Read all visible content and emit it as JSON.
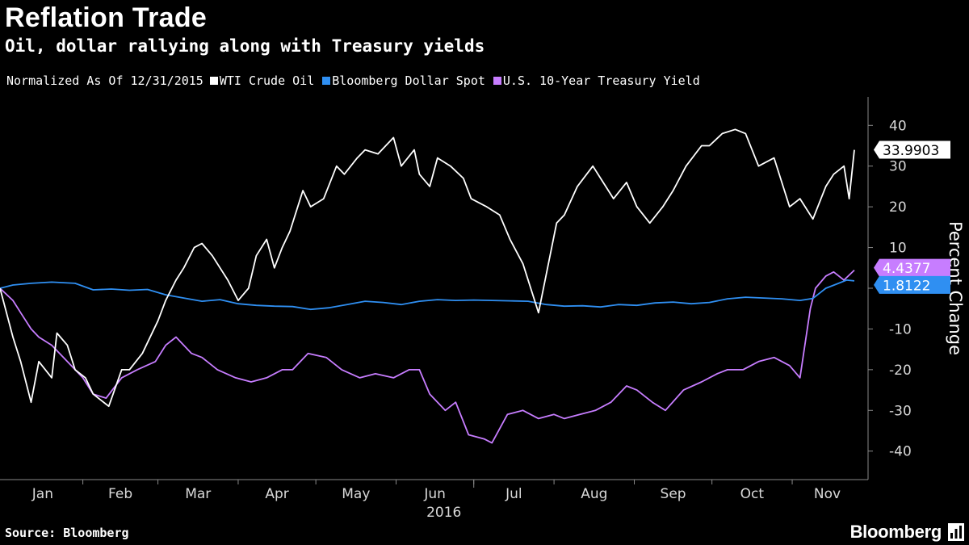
{
  "header": {
    "title": "Reflation Trade",
    "subtitle": "Oil, dollar rallying along with Treasury yields"
  },
  "legend": {
    "note": "Normalized As Of 12/31/2015",
    "items": [
      {
        "label": "WTI Crude Oil",
        "color": "#ffffff"
      },
      {
        "label": "Bloomberg Dollar Spot",
        "color": "#2f8ff2"
      },
      {
        "label": "U.S. 10-Year Treasury Yield",
        "color": "#c77dff"
      }
    ]
  },
  "footer": {
    "source": "Source: Bloomberg",
    "brand": "Bloomberg",
    "brand_icon": "bloomberg-chart-icon"
  },
  "chart_data": {
    "type": "line",
    "ylabel": "Percent Change",
    "xlabel": "2016",
    "ylim": [
      -47,
      47
    ],
    "yticks": [
      40,
      30,
      20,
      10,
      0,
      -10,
      -20,
      -30,
      -40
    ],
    "ytick_labels": [
      "40",
      "30",
      "20",
      "10",
      "0",
      "-10",
      "-20",
      "-30",
      "-40"
    ],
    "xlim": [
      "2015-12-31",
      "2016-11-25"
    ],
    "xticks": [
      "Jan",
      "Feb",
      "Mar",
      "Apr",
      "May",
      "Jun",
      "Jul",
      "Aug",
      "Sep",
      "Oct",
      "Nov"
    ],
    "grid": false,
    "legend_position": "top-left",
    "series": [
      {
        "name": "WTI Crude Oil",
        "color": "#ffffff",
        "end_label": "33.9903",
        "dates": [
          "2015-12-31",
          "2016-01-05",
          "2016-01-08",
          "2016-01-12",
          "2016-01-15",
          "2016-01-20",
          "2016-01-22",
          "2016-01-26",
          "2016-01-29",
          "2016-02-02",
          "2016-02-05",
          "2016-02-11",
          "2016-02-16",
          "2016-02-19",
          "2016-02-24",
          "2016-03-01",
          "2016-03-04",
          "2016-03-08",
          "2016-03-11",
          "2016-03-15",
          "2016-03-18",
          "2016-03-22",
          "2016-03-28",
          "2016-04-01",
          "2016-04-05",
          "2016-04-08",
          "2016-04-12",
          "2016-04-15",
          "2016-04-18",
          "2016-04-21",
          "2016-04-26",
          "2016-04-29",
          "2016-05-04",
          "2016-05-09",
          "2016-05-12",
          "2016-05-17",
          "2016-05-20",
          "2016-05-25",
          "2016-05-31",
          "2016-06-03",
          "2016-06-08",
          "2016-06-10",
          "2016-06-14",
          "2016-06-17",
          "2016-06-22",
          "2016-06-27",
          "2016-06-30",
          "2016-07-06",
          "2016-07-11",
          "2016-07-15",
          "2016-07-20",
          "2016-07-26",
          "2016-08-02",
          "2016-08-05",
          "2016-08-10",
          "2016-08-16",
          "2016-08-19",
          "2016-08-24",
          "2016-08-29",
          "2016-09-02",
          "2016-09-07",
          "2016-09-12",
          "2016-09-16",
          "2016-09-21",
          "2016-09-27",
          "2016-09-30",
          "2016-10-05",
          "2016-10-10",
          "2016-10-14",
          "2016-10-19",
          "2016-10-25",
          "2016-10-31",
          "2016-11-04",
          "2016-11-09",
          "2016-11-14",
          "2016-11-17",
          "2016-11-21",
          "2016-11-23",
          "2016-11-25"
        ],
        "values": [
          0,
          -12,
          -18,
          -28,
          -18,
          -22,
          -11,
          -14,
          -20,
          -22,
          -26,
          -29,
          -20,
          -20,
          -16,
          -8,
          -3,
          2,
          5,
          10,
          11,
          8,
          2,
          -3,
          0,
          8,
          12,
          5,
          10,
          14,
          24,
          20,
          22,
          30,
          28,
          32,
          34,
          33,
          37,
          30,
          34,
          28,
          25,
          32,
          30,
          27,
          22,
          20,
          18,
          12,
          6,
          -6,
          16,
          18,
          25,
          30,
          27,
          22,
          26,
          20,
          16,
          20,
          24,
          30,
          35,
          35,
          38,
          39,
          38,
          30,
          32,
          20,
          22,
          17,
          25,
          28,
          30,
          22,
          34
        ]
      },
      {
        "name": "Bloomberg Dollar Spot",
        "color": "#2f8ff2",
        "end_label": "1.8122",
        "dates": [
          "2015-12-31",
          "2016-01-05",
          "2016-01-12",
          "2016-01-20",
          "2016-01-29",
          "2016-02-05",
          "2016-02-12",
          "2016-02-19",
          "2016-02-26",
          "2016-03-04",
          "2016-03-11",
          "2016-03-18",
          "2016-03-25",
          "2016-04-01",
          "2016-04-08",
          "2016-04-15",
          "2016-04-22",
          "2016-04-29",
          "2016-05-06",
          "2016-05-13",
          "2016-05-20",
          "2016-05-27",
          "2016-06-03",
          "2016-06-10",
          "2016-06-17",
          "2016-06-24",
          "2016-07-01",
          "2016-07-08",
          "2016-07-15",
          "2016-07-22",
          "2016-07-29",
          "2016-08-05",
          "2016-08-12",
          "2016-08-19",
          "2016-08-26",
          "2016-09-02",
          "2016-09-09",
          "2016-09-16",
          "2016-09-23",
          "2016-09-30",
          "2016-10-07",
          "2016-10-14",
          "2016-10-21",
          "2016-10-28",
          "2016-11-04",
          "2016-11-09",
          "2016-11-14",
          "2016-11-18",
          "2016-11-22",
          "2016-11-25"
        ],
        "values": [
          0,
          0.8,
          1.2,
          1.5,
          1.2,
          -0.4,
          -0.2,
          -0.5,
          -0.3,
          -1.6,
          -2.4,
          -3.2,
          -2.8,
          -3.8,
          -4.2,
          -4.4,
          -4.5,
          -5.2,
          -4.8,
          -4.0,
          -3.2,
          -3.5,
          -4.0,
          -3.2,
          -2.8,
          -3.0,
          -2.9,
          -3.0,
          -3.1,
          -3.2,
          -4.0,
          -4.4,
          -4.3,
          -4.6,
          -4.0,
          -4.2,
          -3.6,
          -3.4,
          -3.8,
          -3.5,
          -2.6,
          -2.2,
          -2.4,
          -2.6,
          -3.0,
          -2.5,
          0,
          1,
          2,
          1.8122
        ]
      },
      {
        "name": "U.S. 10-Year Treasury Yield",
        "color": "#c77dff",
        "end_label": "4.4377",
        "dates": [
          "2015-12-31",
          "2016-01-05",
          "2016-01-08",
          "2016-01-12",
          "2016-01-15",
          "2016-01-20",
          "2016-01-26",
          "2016-02-01",
          "2016-02-05",
          "2016-02-10",
          "2016-02-16",
          "2016-02-22",
          "2016-02-29",
          "2016-03-04",
          "2016-03-08",
          "2016-03-14",
          "2016-03-18",
          "2016-03-24",
          "2016-03-31",
          "2016-04-06",
          "2016-04-12",
          "2016-04-18",
          "2016-04-22",
          "2016-04-28",
          "2016-05-05",
          "2016-05-11",
          "2016-05-18",
          "2016-05-24",
          "2016-05-31",
          "2016-06-06",
          "2016-06-10",
          "2016-06-14",
          "2016-06-20",
          "2016-06-24",
          "2016-06-29",
          "2016-07-05",
          "2016-07-08",
          "2016-07-14",
          "2016-07-20",
          "2016-07-26",
          "2016-08-01",
          "2016-08-05",
          "2016-08-11",
          "2016-08-17",
          "2016-08-23",
          "2016-08-29",
          "2016-09-02",
          "2016-09-08",
          "2016-09-13",
          "2016-09-20",
          "2016-09-27",
          "2016-10-03",
          "2016-10-07",
          "2016-10-13",
          "2016-10-19",
          "2016-10-25",
          "2016-10-31",
          "2016-11-04",
          "2016-11-08",
          "2016-11-10",
          "2016-11-14",
          "2016-11-17",
          "2016-11-21",
          "2016-11-25"
        ],
        "values": [
          0,
          -3,
          -6,
          -10,
          -12,
          -14,
          -18,
          -22,
          -26,
          -27,
          -22,
          -20,
          -18,
          -14,
          -12,
          -16,
          -17,
          -20,
          -22,
          -23,
          -22,
          -20,
          -20,
          -16,
          -17,
          -20,
          -22,
          -21,
          -22,
          -20,
          -20,
          -26,
          -30,
          -28,
          -36,
          -37,
          -38,
          -31,
          -30,
          -32,
          -31,
          -32,
          -31,
          -30,
          -28,
          -24,
          -25,
          -28,
          -30,
          -25,
          -23,
          -21,
          -20,
          -20,
          -18,
          -17,
          -19,
          -22,
          -5,
          0,
          3,
          4,
          2,
          4.4377
        ]
      }
    ]
  }
}
